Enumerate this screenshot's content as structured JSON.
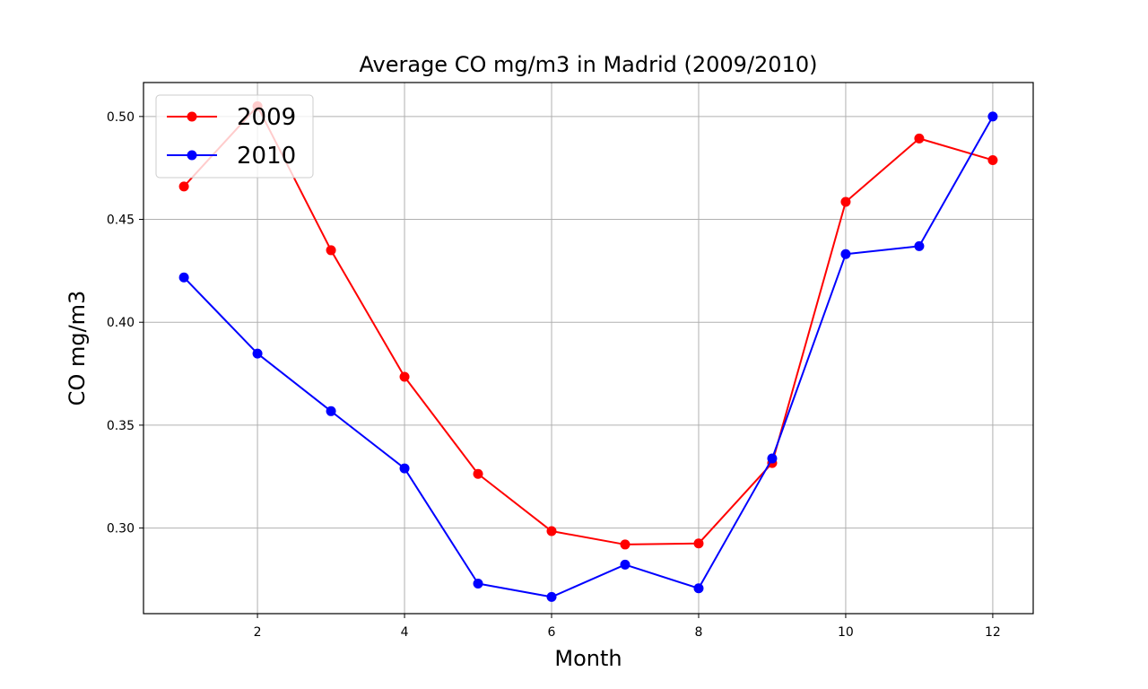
{
  "chart_data": {
    "type": "line",
    "title": "Average CO mg/m3 in Madrid (2009/2010)",
    "xlabel": "Month",
    "ylabel": "CO mg/m3",
    "xlim": [
      0.45,
      12.55
    ],
    "ylim": [
      0.2584,
      0.5165
    ],
    "xticks": [
      2,
      4,
      6,
      8,
      10,
      12
    ],
    "yticks": [
      0.3,
      0.35,
      0.4,
      0.45,
      0.5
    ],
    "ytick_labels": [
      "0.30",
      "0.35",
      "0.40",
      "0.45",
      "0.50"
    ],
    "grid": true,
    "legend_position": "top-left",
    "x": [
      1,
      2,
      3,
      4,
      5,
      6,
      7,
      8,
      9,
      10,
      11,
      12
    ],
    "series": [
      {
        "name": "2009",
        "color": "#ff0000",
        "values": [
          0.466,
          0.505,
          0.435,
          0.3735,
          0.3263,
          0.2985,
          0.292,
          0.2925,
          0.3316,
          0.4585,
          0.4893,
          0.4788
        ]
      },
      {
        "name": "2010",
        "color": "#0000ff",
        "values": [
          0.4218,
          0.3848,
          0.3568,
          0.329,
          0.273,
          0.2665,
          0.2822,
          0.2707,
          0.3338,
          0.4331,
          0.437,
          0.5
        ]
      }
    ]
  }
}
